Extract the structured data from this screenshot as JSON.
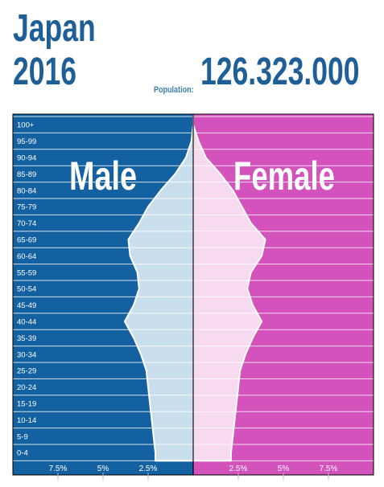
{
  "header": {
    "country": "Japan",
    "year": "2016",
    "population_label": "Population:",
    "population_value": "126.323.000"
  },
  "colors": {
    "title": "#1f5f97",
    "male_bg": "#1461a1",
    "male_fill": "#cadfee",
    "female_bg": "#d352bb",
    "female_fill": "#f7d9f0",
    "gridline": "#ffffff"
  },
  "chart_data": {
    "type": "population-pyramid",
    "sides": {
      "left": "Male",
      "right": "Female"
    },
    "age_groups": [
      "100+",
      "95-99",
      "90-94",
      "85-89",
      "80-84",
      "75-79",
      "70-74",
      "65-69",
      "60-64",
      "55-59",
      "50-54",
      "45-49",
      "40-44",
      "35-39",
      "30-34",
      "25-29",
      "20-24",
      "15-19",
      "10-14",
      "5-9",
      "0-4"
    ],
    "male_percent": [
      0.0,
      0.1,
      0.4,
      1.0,
      1.8,
      2.5,
      3.0,
      3.6,
      3.5,
      3.1,
      3.0,
      3.3,
      3.8,
      3.3,
      2.9,
      2.6,
      2.5,
      2.4,
      2.3,
      2.2,
      2.1
    ],
    "female_percent": [
      0.0,
      0.3,
      0.7,
      1.5,
      2.2,
      2.7,
      3.2,
      4.0,
      3.8,
      3.2,
      3.0,
      3.3,
      3.8,
      3.3,
      2.9,
      2.6,
      2.5,
      2.4,
      2.3,
      2.2,
      2.1
    ],
    "x_ticks_left": [
      "7.5%",
      "5%",
      "2.5%"
    ],
    "x_ticks_right": [
      "2.5%",
      "5%",
      "7.5%"
    ],
    "x_max_percent": 10
  }
}
